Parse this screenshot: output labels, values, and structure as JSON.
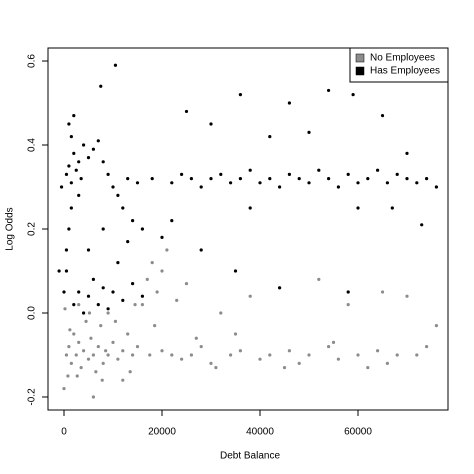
{
  "chart_data": {
    "type": "scatter",
    "x_label": "Debt Balance",
    "y_label": "Log Odds",
    "xlim": [
      -3265,
      78367
    ],
    "ylim": [
      -0.231,
      0.631
    ],
    "xticks": [
      0,
      20000,
      40000,
      60000
    ],
    "yticks": [
      -0.2,
      {
        "value": 0,
        "label": "0.0"
      },
      0.2,
      0.4,
      0.6
    ],
    "legend": "top-right",
    "series": [
      {
        "name": "No Employees",
        "color": "#8c8c8c",
        "x": [
          500,
          1000,
          1500,
          2000,
          2500,
          3000,
          3500,
          4000,
          4500,
          5000,
          5500,
          6000,
          6500,
          7000,
          7500,
          8000,
          8500,
          9000,
          10000,
          11000,
          12000,
          13000,
          14000,
          15000,
          16000,
          17000,
          18000,
          17500,
          19000,
          20000,
          21000,
          22000,
          23000,
          24000,
          25000,
          26000,
          28000,
          30000,
          32000,
          34000,
          36000,
          38000,
          40000,
          42000,
          44000,
          46000,
          48000,
          50000,
          52000,
          54000,
          56000,
          58000,
          60000,
          62000,
          64000,
          66000,
          68000,
          70000,
          72000,
          74000,
          76000,
          0,
          200,
          800,
          3000,
          6000,
          9000,
          12000,
          14500,
          20000,
          18500,
          1200,
          2700,
          5200,
          7800,
          10500,
          13500,
          27000,
          31000,
          35000,
          45000,
          55000,
          65000
        ],
        "y": [
          -0.1,
          -0.08,
          -0.12,
          -0.05,
          -0.1,
          -0.07,
          -0.13,
          -0.09,
          -0.02,
          -0.11,
          -0.06,
          -0.1,
          -0.14,
          -0.08,
          -0.03,
          -0.12,
          -0.09,
          -0.1,
          -0.07,
          -0.11,
          -0.09,
          -0.05,
          -0.1,
          -0.08,
          0.02,
          0.08,
          0.12,
          -0.1,
          0.05,
          -0.09,
          0.15,
          -0.1,
          0.03,
          -0.11,
          0.07,
          -0.1,
          -0.08,
          -0.12,
          0.0,
          -0.1,
          -0.09,
          0.04,
          -0.11,
          -0.1,
          0.06,
          -0.09,
          -0.12,
          -0.1,
          0.08,
          -0.08,
          -0.11,
          0.02,
          -0.1,
          -0.13,
          -0.09,
          -0.12,
          -0.1,
          0.04,
          -0.1,
          -0.08,
          -0.03,
          -0.18,
          0.01,
          -0.15,
          0.02,
          -0.2,
          0.0,
          -0.16,
          0.02,
          0.1,
          -0.03,
          -0.04,
          -0.15,
          0.0,
          -0.16,
          -0.02,
          -0.14,
          -0.06,
          -0.13,
          -0.05,
          -0.13,
          -0.07,
          0.05
        ]
      },
      {
        "name": "Has Employees",
        "color": "#000000",
        "x": [
          500,
          1000,
          1500,
          2000,
          2500,
          3000,
          3500,
          4000,
          5000,
          6000,
          7000,
          8000,
          9000,
          10000,
          11000,
          12000,
          13000,
          14000,
          15000,
          16000,
          18000,
          20000,
          22000,
          24000,
          26000,
          28000,
          30000,
          32000,
          34000,
          36000,
          38000,
          40000,
          42000,
          44000,
          46000,
          48000,
          50000,
          52000,
          54000,
          56000,
          58000,
          60000,
          62000,
          64000,
          66000,
          68000,
          70000,
          72000,
          74000,
          76000,
          10500,
          7500,
          54000,
          59000,
          46000,
          36000,
          25000,
          65000,
          30000,
          42000,
          50000,
          70000,
          0,
          500,
          1000,
          1500,
          500,
          2000,
          3000,
          4000,
          5000,
          6000,
          7000,
          8000,
          9000,
          10000,
          12000,
          14000,
          16000,
          1000,
          2000,
          1500,
          22000,
          28000,
          35000,
          38000,
          44000,
          58000,
          60000,
          67000,
          73000,
          5000,
          8000,
          11000,
          3000,
          13000,
          -1000,
          -500
        ],
        "y": [
          0.33,
          0.35,
          0.31,
          0.38,
          0.34,
          0.36,
          0.32,
          0.4,
          0.37,
          0.39,
          0.41,
          0.36,
          0.33,
          0.3,
          0.28,
          0.25,
          0.32,
          0.22,
          0.31,
          0.2,
          0.32,
          0.18,
          0.31,
          0.33,
          0.32,
          0.3,
          0.32,
          0.33,
          0.31,
          0.32,
          0.34,
          0.31,
          0.32,
          0.3,
          0.33,
          0.32,
          0.31,
          0.34,
          0.32,
          0.3,
          0.33,
          0.31,
          0.32,
          0.34,
          0.31,
          0.33,
          0.32,
          0.31,
          0.32,
          0.3,
          0.59,
          0.54,
          0.53,
          0.52,
          0.5,
          0.52,
          0.48,
          0.47,
          0.45,
          0.42,
          0.43,
          0.38,
          0.05,
          0.1,
          0.2,
          0.25,
          0.15,
          0.02,
          0.05,
          0.0,
          0.04,
          0.08,
          0.02,
          0.06,
          0.01,
          0.05,
          0.03,
          0.07,
          0.04,
          0.45,
          0.47,
          0.42,
          0.22,
          0.15,
          0.1,
          0.25,
          0.06,
          0.05,
          0.25,
          0.25,
          0.21,
          0.15,
          0.2,
          0.12,
          0.28,
          0.17,
          0.1,
          0.3
        ]
      }
    ]
  }
}
